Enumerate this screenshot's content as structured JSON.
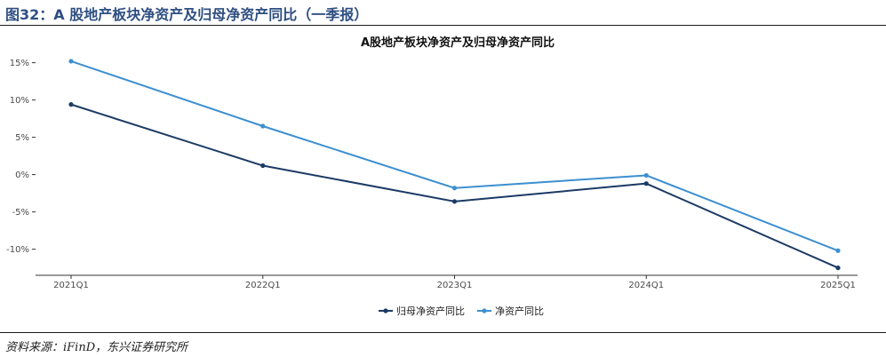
{
  "figure": {
    "title": "图32：A 股地产板块净资产及归母净资产同比（一季报）",
    "source": "资料来源：iFinD，东兴证券研究所"
  },
  "chart_data": {
    "type": "line",
    "title": "A股地产板块净资产及归母净资产同比",
    "xlabel": "",
    "ylabel": "",
    "categories": [
      "2021Q1",
      "2022Q1",
      "2023Q1",
      "2024Q1",
      "2025Q1"
    ],
    "yticks": [
      "15%",
      "10%",
      "5%",
      "0%",
      "-5%",
      "-10%"
    ],
    "ylim": [
      -13.5,
      16.5
    ],
    "grid": false,
    "legend_position": "bottom",
    "series": [
      {
        "name": "归母净资产同比",
        "color": "#1b3a64",
        "values": [
          9.4,
          1.2,
          -3.6,
          -1.2,
          -12.5
        ]
      },
      {
        "name": "净资产同比",
        "color": "#3c8fd0",
        "values": [
          15.2,
          6.5,
          -1.8,
          -0.1,
          -10.2
        ]
      }
    ]
  }
}
